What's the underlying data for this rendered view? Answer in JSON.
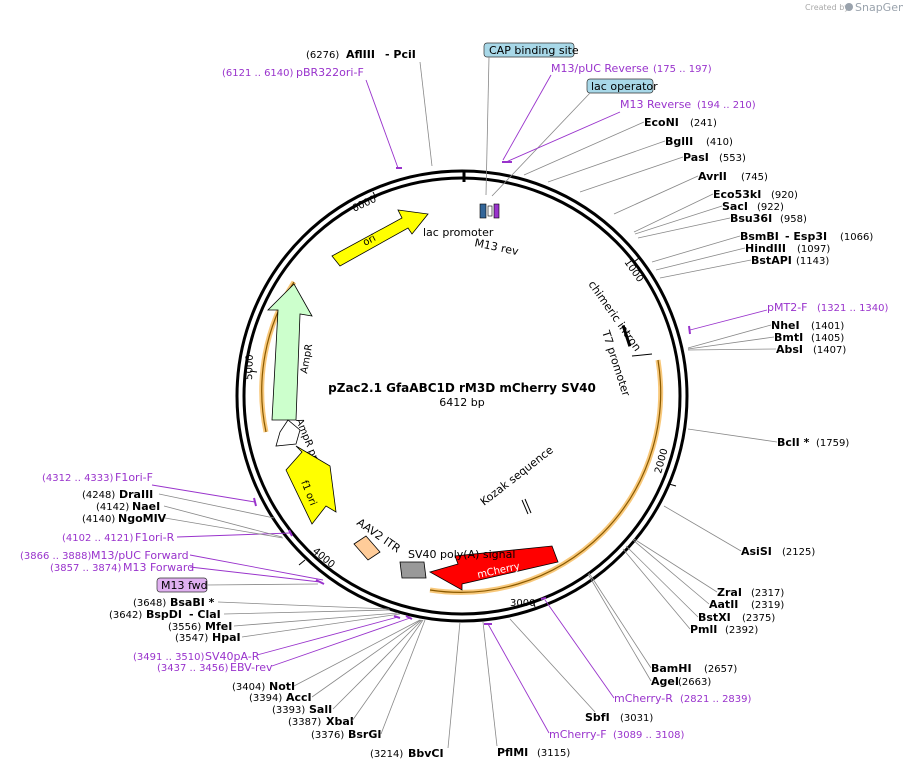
{
  "logo": {
    "prefix": "Created by",
    "brand": "SnapGene"
  },
  "plasmid": {
    "name": "pZac2.1 GfaABC1D rM3D mCherry SV40",
    "size": "6412 bp"
  },
  "ticks": [
    "1000",
    "2000",
    "3000",
    "4000",
    "5000",
    "6000"
  ],
  "features": {
    "ori": "ori",
    "ampr": "AmpR",
    "ampr_promoter": "AmpR promoter",
    "f1ori": "f1 ori",
    "aav2_itr": "AAV2 ITR",
    "sv40_polya": "SV40 poly(A) signal",
    "mcherry": "mCherry",
    "kozak": "Kozak sequence",
    "chimeric_intron": "chimeric intron",
    "t7_promoter": "T7 promoter",
    "lac_promoter": "lac promoter",
    "m13_rev": "M13 rev",
    "cap_binding_site": "CAP binding site",
    "lac_operator": "lac operator",
    "m13_fwd": "M13 fwd"
  },
  "sites": {
    "afliii_pos": "(6276)",
    "afliii": "AflIII",
    "pcii": "- PciI",
    "econi": "EcoNI",
    "econi_pos": "(241)",
    "bglii": "BglII",
    "bglii_pos": "(410)",
    "pasi": "PasI",
    "pasi_pos": "(553)",
    "avrii": "AvrII",
    "avrii_pos": "(745)",
    "eco53ki": "Eco53kI",
    "eco53ki_pos": "(920)",
    "saci": "SacI",
    "saci_pos": "(922)",
    "bsu36i": "Bsu36I",
    "bsu36i_pos": "(958)",
    "bsmbi": "BsmBI",
    "esp3i": "- Esp3I",
    "bsmbi_pos": "(1066)",
    "hindiii": "HindIII",
    "hindiii_pos": "(1097)",
    "bstapi": "BstAPI",
    "bstapi_pos": "(1143)",
    "nhei": "NheI",
    "nhei_pos": "(1401)",
    "bmti": "BmtI",
    "bmti_pos": "(1405)",
    "absi": "AbsI",
    "absi_pos": "(1407)",
    "bcli": "BclI *",
    "bcli_pos": "(1759)",
    "asisi": "AsiSI",
    "asisi_pos": "(2125)",
    "zrai": "ZraI",
    "zrai_pos": "(2317)",
    "aatii": "AatII",
    "aatii_pos": "(2319)",
    "bstxi": "BstXI",
    "bstxi_pos": "(2375)",
    "pmli": "PmlI",
    "pmli_pos": "(2392)",
    "bamhi": "BamHI",
    "bamhi_pos": "(2657)",
    "agei": "AgeI",
    "agei_pos": "(2663)",
    "sbfi": "SbfI",
    "sbfi_pos": "(3031)",
    "pflmi": "PflMI",
    "pflmi_pos": "(3115)",
    "bbvci": "BbvCI",
    "bbvci_pos": "(3214)",
    "bsrgi": "BsrGI",
    "bsrgi_pos": "(3376)",
    "xbai": "XbaI",
    "xbai_pos": "(3387)",
    "sali": "SalI",
    "sali_pos": "(3393)",
    "acci": "AccI",
    "acci_pos": "(3394)",
    "noti": "NotI",
    "noti_pos": "(3404)",
    "hpai": "HpaI",
    "hpai_pos": "(3547)",
    "mfei": "MfeI",
    "mfei_pos": "(3556)",
    "bspdi": "BspDI",
    "clai": "- ClaI",
    "bspdi_pos": "(3642)",
    "bsabi": "BsaBI *",
    "bsabi_pos": "(3648)",
    "ngomiv": "NgoMIV",
    "ngomiv_pos": "(4140)",
    "naei": "NaeI",
    "naei_pos": "(4142)",
    "draiii": "DraIII",
    "draiii_pos": "(4248)"
  },
  "primers": {
    "pbr322": "pBR322ori-F",
    "pbr322_pos": "(6121 .. 6140)",
    "m13puc_rev": "M13/pUC Reverse",
    "m13puc_rev_pos": "(175 .. 197)",
    "m13_reverse": "M13 Reverse",
    "m13_reverse_pos": "(194 .. 210)",
    "pmt2f": "pMT2-F",
    "pmt2f_pos": "(1321 .. 1340)",
    "mcherry_r": "mCherry-R",
    "mcherry_r_pos": "(2821 .. 2839)",
    "mcherry_f": "mCherry-F",
    "mcherry_f_pos": "(3089 .. 3108)",
    "sv40pa_r": "SV40pA-R",
    "sv40pa_r_pos": "(3491 .. 3510)",
    "ebv_rev": "EBV-rev",
    "ebv_rev_pos": "(3437 .. 3456)",
    "m13puc_fwd": "M13/pUC Forward",
    "m13puc_fwd_pos": "(3866 .. 3888)",
    "m13_forward": "M13 Forward",
    "m13_forward_pos": "(3857 .. 3874)",
    "f1ori_r": "F1ori-R",
    "f1ori_r_pos": "(4102 .. 4121)",
    "f1ori_f": "F1ori-F",
    "f1ori_f_pos": "(4312 .. 4333)"
  },
  "colors": {
    "ori": "#ffff00",
    "ampr": "#ccffcc",
    "ampr_promoter": "#ffffff",
    "f1ori": "#ffff00",
    "mcherry": "#ff0000",
    "aav2_itr": "#ffcc99",
    "sv40": "#999999",
    "orange_band": "#f5b041",
    "primer": "#9933cc"
  }
}
